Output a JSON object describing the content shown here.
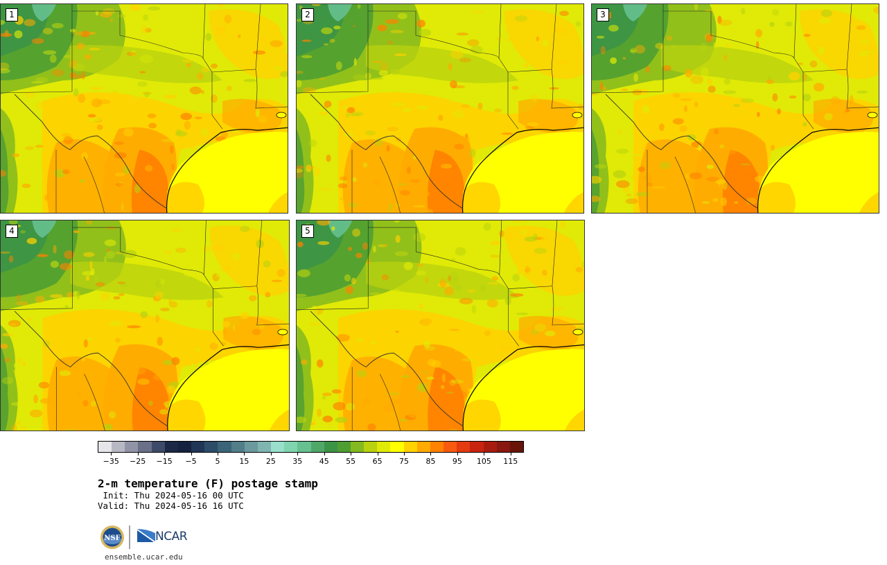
{
  "panels": [
    {
      "label": "1"
    },
    {
      "label": "2"
    },
    {
      "label": "3"
    },
    {
      "label": "4"
    },
    {
      "label": "5"
    }
  ],
  "colorbar": {
    "colors": [
      "#e6e6ea",
      "#b8b8c4",
      "#9094a6",
      "#6a7088",
      "#3e4a6a",
      "#1c2846",
      "#15223f",
      "#1f3656",
      "#2c4c68",
      "#3c6478",
      "#527e8a",
      "#6a9a9e",
      "#7fb4b0",
      "#98e0cc",
      "#80d4b0",
      "#66c090",
      "#50a868",
      "#3c9446",
      "#4f9e32",
      "#84b91f",
      "#b8d20f",
      "#e0ea06",
      "#ffff00",
      "#ffd200",
      "#ffaa00",
      "#ff8200",
      "#f85a10",
      "#e43a10",
      "#c82410",
      "#a81c10",
      "#881810",
      "#681408"
    ],
    "ticks": [
      "−35",
      "−25",
      "−15",
      "−5",
      "5",
      "15",
      "25",
      "35",
      "45",
      "55",
      "65",
      "75",
      "85",
      "95",
      "105",
      "115"
    ]
  },
  "title": "2-m temperature (F) postage stamp",
  "init": " Init: Thu 2024-05-16 00 UTC",
  "valid": "Valid: Thu 2024-05-16 16 UTC",
  "logo": {
    "nsf_text": "NSF",
    "ncar_text": "NCAR"
  },
  "url": "ensemble.ucar.edu"
}
